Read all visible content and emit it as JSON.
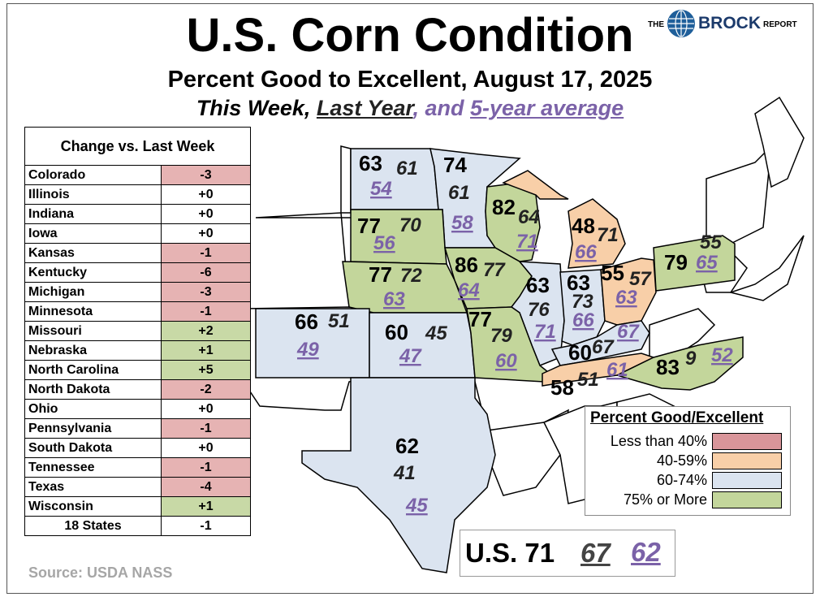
{
  "title": "U.S. Corn Condition",
  "subtitle": "Percent Good to Excellent, August 17, 2025",
  "series_line": {
    "this_week": "This Week",
    "sep1": ",",
    "last_year": "Last Year",
    "sep2": ", and",
    "avg": "5-year average"
  },
  "logo": {
    "the": "THE",
    "name": "BROCK",
    "report": "REPORT"
  },
  "table": {
    "header": "Change vs. Last Week",
    "rows": [
      {
        "state": "Colorado",
        "change": "-3"
      },
      {
        "state": "Illinois",
        "change": "+0"
      },
      {
        "state": "Indiana",
        "change": "+0"
      },
      {
        "state": "Iowa",
        "change": "+0"
      },
      {
        "state": "Kansas",
        "change": "-1"
      },
      {
        "state": "Kentucky",
        "change": "-6"
      },
      {
        "state": "Michigan",
        "change": "-3"
      },
      {
        "state": "Minnesota",
        "change": "-1"
      },
      {
        "state": "Missouri",
        "change": "+2"
      },
      {
        "state": "Nebraska",
        "change": "+1"
      },
      {
        "state": "North Carolina",
        "change": "+5"
      },
      {
        "state": "North Dakota",
        "change": "-2"
      },
      {
        "state": "Ohio",
        "change": "+0"
      },
      {
        "state": "Pennsylvania",
        "change": "-1"
      },
      {
        "state": "South Dakota",
        "change": "+0"
      },
      {
        "state": "Tennessee",
        "change": "-1"
      },
      {
        "state": "Texas",
        "change": "-4"
      },
      {
        "state": "Wisconsin",
        "change": "+1"
      }
    ],
    "total": {
      "state": "18 States",
      "change": "-1"
    }
  },
  "states": [
    {
      "state": "North Dakota",
      "this_week": "63",
      "last_year": "61",
      "avg": "54",
      "category": "60-74%"
    },
    {
      "state": "Minnesota",
      "this_week": "74",
      "last_year": "61",
      "avg": "58",
      "category": "60-74%"
    },
    {
      "state": "Wisconsin",
      "this_week": "82",
      "last_year": "64",
      "avg": "71",
      "category": "75% or More"
    },
    {
      "state": "Michigan",
      "this_week": "48",
      "last_year": "71",
      "avg": "66",
      "category": "40-59%"
    },
    {
      "state": "South Dakota",
      "this_week": "77",
      "last_year": "70",
      "avg": "56",
      "category": "75% or More"
    },
    {
      "state": "Nebraska",
      "this_week": "77",
      "last_year": "72",
      "avg": "63",
      "category": "75% or More"
    },
    {
      "state": "Iowa",
      "this_week": "86",
      "last_year": "77",
      "avg": "64",
      "category": "75% or More"
    },
    {
      "state": "Illinois",
      "this_week": "63",
      "last_year": "76",
      "avg": "71",
      "category": "60-74%"
    },
    {
      "state": "Indiana",
      "this_week": "63",
      "last_year": "73",
      "avg": "66",
      "category": "60-74%"
    },
    {
      "state": "Ohio",
      "this_week": "55",
      "last_year": "57",
      "avg": "63",
      "category": "40-59%"
    },
    {
      "state": "Pennsylvania",
      "this_week": "79",
      "last_year": "55",
      "avg": "65",
      "category": "75% or More"
    },
    {
      "state": "Colorado",
      "this_week": "66",
      "last_year": "51",
      "avg": "49",
      "category": "60-74%"
    },
    {
      "state": "Kansas",
      "this_week": "60",
      "last_year": "45",
      "avg": "47",
      "category": "60-74%"
    },
    {
      "state": "Missouri",
      "this_week": "77",
      "last_year": "79",
      "avg": "60",
      "category": "75% or More"
    },
    {
      "state": "Kentucky",
      "this_week": "60",
      "last_year": "67",
      "avg": "67",
      "category": "60-74%"
    },
    {
      "state": "Tennessee",
      "this_week": "58",
      "last_year": "51",
      "avg": "61",
      "category": "40-59%"
    },
    {
      "state": "North Carolina",
      "this_week": "83",
      "last_year": "9",
      "avg": "52",
      "category": "75% or More"
    },
    {
      "state": "Texas",
      "this_week": "62",
      "last_year": "41",
      "avg": "45",
      "category": "60-74%"
    }
  ],
  "legend": {
    "title": "Percent Good/Excellent",
    "items": [
      {
        "label": "Less than 40%",
        "color": "#d9959a"
      },
      {
        "label": "40-59%",
        "color": "#f8cfa8"
      },
      {
        "label": "60-74%",
        "color": "#dbe4f0"
      },
      {
        "label": "75% or More",
        "color": "#c3d69b"
      }
    ]
  },
  "us": {
    "label": "U.S. 71",
    "last_year": "67",
    "avg": "62"
  },
  "source": "Source: USDA NASS",
  "colors": {
    "negative": "#e6b3b3",
    "positive": "#c8d9a6",
    "accent_avg": "#7b62a8"
  }
}
